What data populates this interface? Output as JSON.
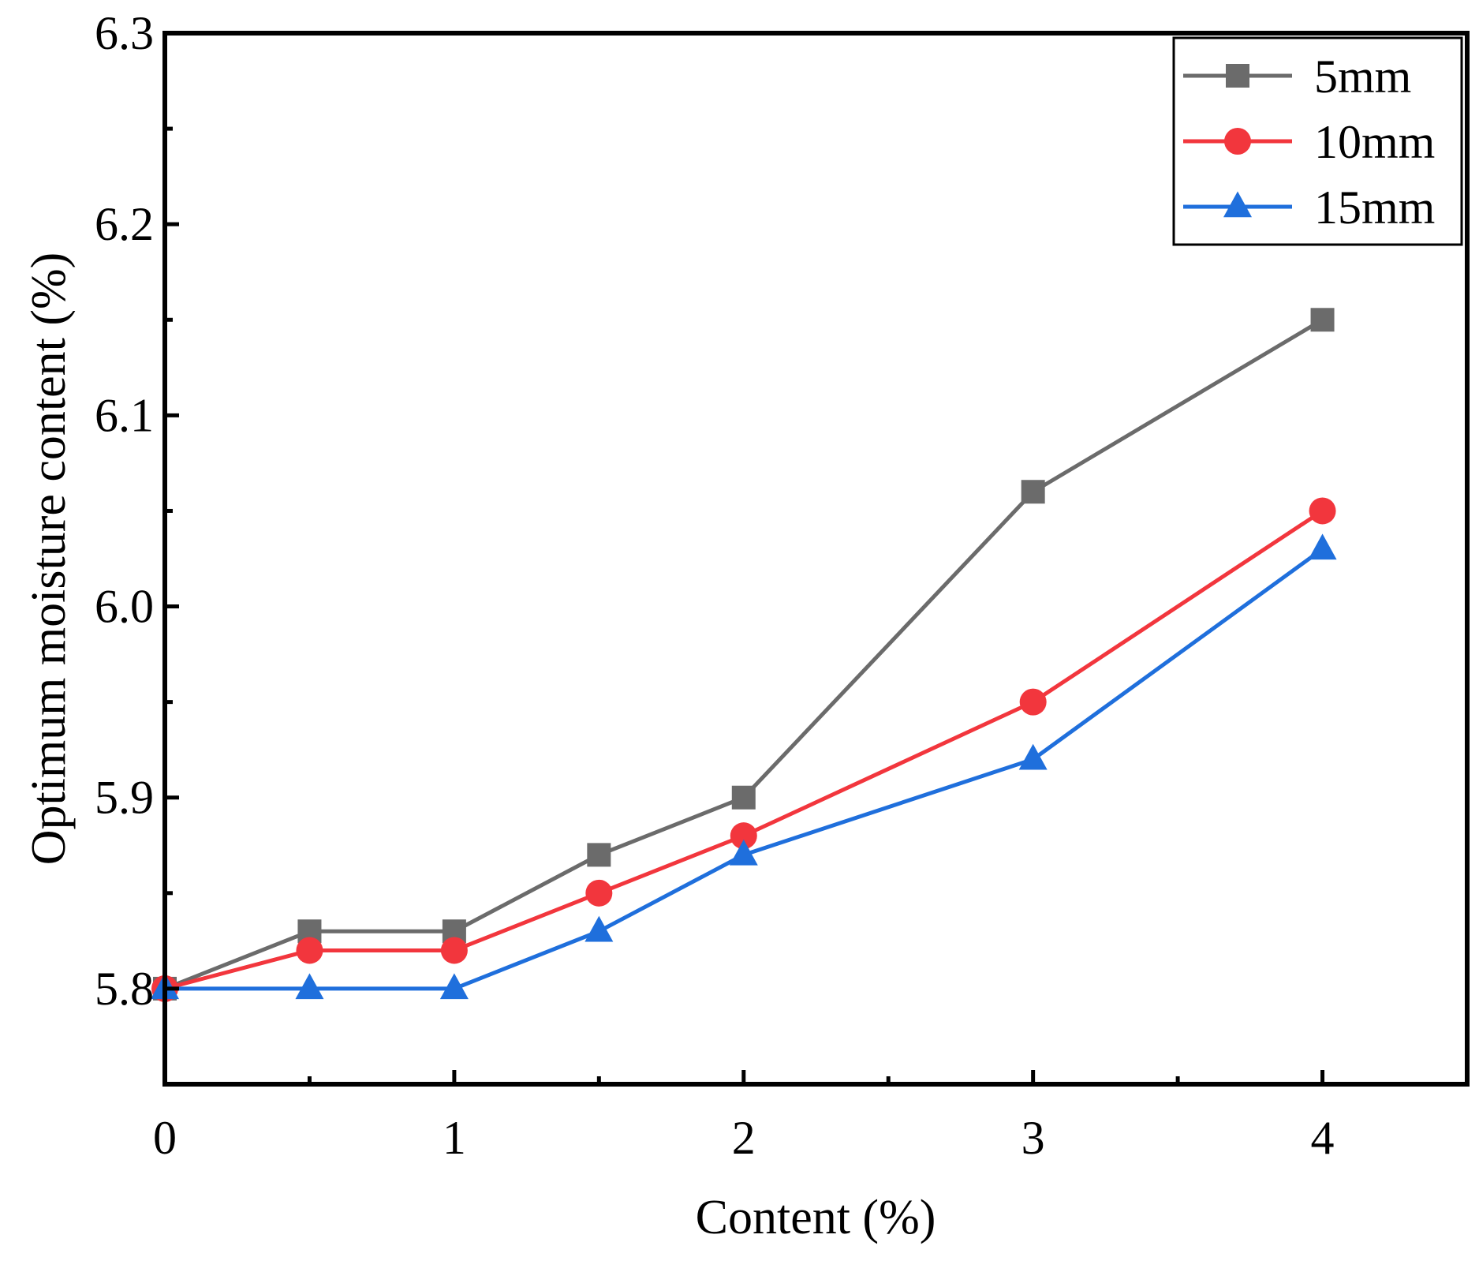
{
  "chart_data": {
    "type": "line",
    "title": "",
    "xlabel": "Content (%)",
    "ylabel": "Optimum moisture content (%)",
    "xlim": [
      0,
      4.5
    ],
    "ylim": [
      5.75,
      6.3
    ],
    "x_ticks": [
      0,
      1,
      2,
      3,
      4
    ],
    "x_tick_labels": [
      "0",
      "1",
      "2",
      "3",
      "4"
    ],
    "y_ticks": [
      5.8,
      5.9,
      6.0,
      6.1,
      6.2,
      6.3
    ],
    "y_tick_labels": [
      "5.8",
      "5.9",
      "6.0",
      "6.1",
      "6.2",
      "6.3"
    ],
    "x_minor_ticks": [
      0.5,
      1.5,
      2.5,
      3.5
    ],
    "y_minor_ticks": [
      5.75,
      5.85,
      5.95,
      6.05,
      6.15,
      6.25
    ],
    "grid": false,
    "legend_position": "top-right",
    "x": [
      0,
      0.5,
      1,
      1.5,
      2,
      3,
      4
    ],
    "series": [
      {
        "name": "5mm",
        "marker": "square",
        "color": "#6b6b6b",
        "values": [
          5.8,
          5.83,
          5.83,
          5.87,
          5.9,
          6.06,
          6.15
        ]
      },
      {
        "name": "10mm",
        "marker": "circle",
        "color": "#f2363d",
        "values": [
          5.8,
          5.82,
          5.82,
          5.85,
          5.88,
          5.95,
          6.05
        ]
      },
      {
        "name": "15mm",
        "marker": "triangle",
        "color": "#1f6fdc",
        "values": [
          5.8,
          5.8,
          5.8,
          5.83,
          5.87,
          5.92,
          6.03
        ]
      }
    ]
  }
}
